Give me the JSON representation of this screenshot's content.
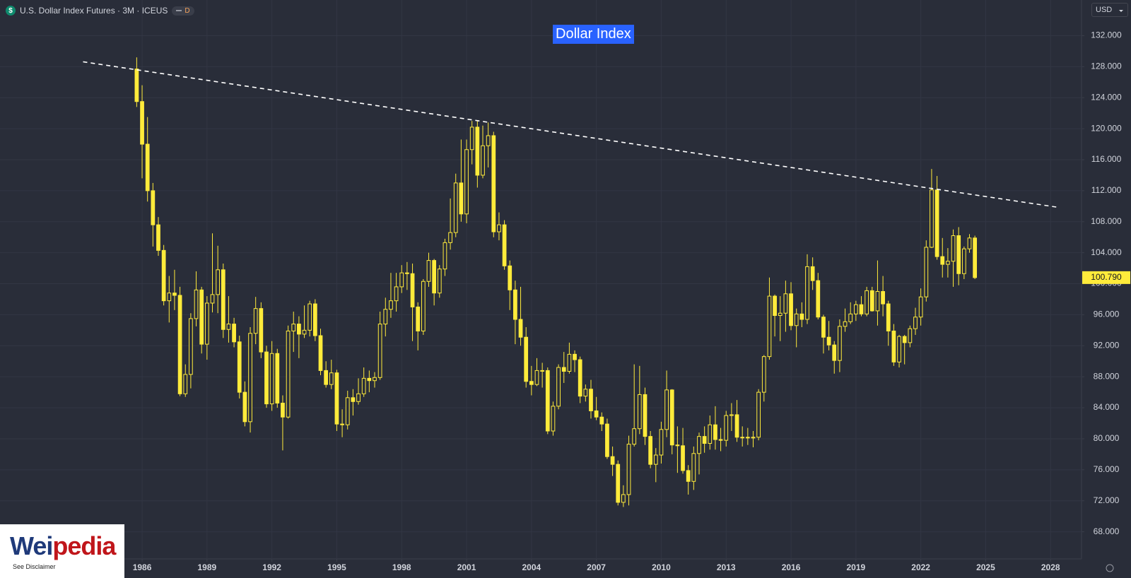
{
  "header": {
    "icon": "$",
    "symbol": "U.S. Dollar Index Futures · 3M · ICEUS",
    "badge": "D"
  },
  "currency": "USD",
  "logo": {
    "part_1": "Wei",
    "part_2": "pedia",
    "note": "See Disclaimer"
  },
  "chart_data": {
    "type": "candlestick",
    "annotation": "Dollar Index",
    "up_color": "#ffeb3b",
    "down_color": "#ffeb3b",
    "hollow_up": true,
    "grid": true,
    "xlim": [
      1979.43,
      2029.43
    ],
    "ylim": [
      64.5,
      136.6
    ],
    "xticks": [
      1986,
      1989,
      1992,
      1995,
      1998,
      2001,
      2004,
      2007,
      2010,
      2013,
      2016,
      2019,
      2022,
      2025,
      2028
    ],
    "yticks": [
      {
        "value": 68,
        "label": "68.000"
      },
      {
        "value": 72,
        "label": "72.000"
      },
      {
        "value": 76,
        "label": "76.000"
      },
      {
        "value": 80,
        "label": "80.000"
      },
      {
        "value": 84,
        "label": "84.000"
      },
      {
        "value": 88,
        "label": "88.000"
      },
      {
        "value": 92,
        "label": "92.000"
      },
      {
        "value": 96,
        "label": "96.000"
      },
      {
        "value": 100,
        "label": "100.000"
      },
      {
        "value": 104,
        "label": "104.000"
      },
      {
        "value": 108,
        "label": "108.000"
      },
      {
        "value": 112,
        "label": "112.000"
      },
      {
        "value": 116,
        "label": "116.000"
      },
      {
        "value": 120,
        "label": "120.000"
      },
      {
        "value": 124,
        "label": "124.000"
      },
      {
        "value": 128,
        "label": "128.000"
      },
      {
        "value": 132,
        "label": "132.000"
      }
    ],
    "last_price": {
      "value": 100.79,
      "label": "100.790"
    },
    "trendline": {
      "x": [
        1983.27,
        2028.36
      ],
      "y": [
        128.63,
        109.85
      ],
      "color": "#ffffff"
    },
    "x": [
      1985.75,
      1986,
      1986.25,
      1986.5,
      1986.75,
      1987,
      1987.25,
      1987.5,
      1987.75,
      1988,
      1988.25,
      1988.5,
      1988.75,
      1989,
      1989.25,
      1989.5,
      1989.75,
      1990,
      1990.25,
      1990.5,
      1990.75,
      1991,
      1991.25,
      1991.5,
      1991.75,
      1992,
      1992.25,
      1992.5,
      1992.75,
      1993,
      1993.25,
      1993.5,
      1993.75,
      1994,
      1994.25,
      1994.5,
      1994.75,
      1995,
      1995.25,
      1995.5,
      1995.75,
      1996,
      1996.25,
      1996.5,
      1996.75,
      1997,
      1997.25,
      1997.5,
      1997.75,
      1998,
      1998.25,
      1998.5,
      1998.75,
      1999,
      1999.25,
      1999.5,
      1999.75,
      2000,
      2000.25,
      2000.5,
      2000.75,
      2001,
      2001.25,
      2001.5,
      2001.75,
      2002,
      2002.25,
      2002.5,
      2002.75,
      2003,
      2003.25,
      2003.5,
      2003.75,
      2004,
      2004.25,
      2004.5,
      2004.75,
      2005,
      2005.25,
      2005.5,
      2005.75,
      2006,
      2006.25,
      2006.5,
      2006.75,
      2007,
      2007.25,
      2007.5,
      2007.75,
      2008,
      2008.25,
      2008.5,
      2008.75,
      2009,
      2009.25,
      2009.5,
      2009.75,
      2010,
      2010.25,
      2010.5,
      2010.75,
      2011,
      2011.25,
      2011.5,
      2011.75,
      2012,
      2012.25,
      2012.5,
      2012.75,
      2013,
      2013.25,
      2013.5,
      2013.75,
      2014,
      2014.25,
      2014.5,
      2014.75,
      2015,
      2015.25,
      2015.5,
      2015.75,
      2016,
      2016.25,
      2016.5,
      2016.75,
      2017,
      2017.25,
      2017.5,
      2017.75,
      2018,
      2018.25,
      2018.5,
      2018.75,
      2019,
      2019.25,
      2019.5,
      2019.75,
      2020,
      2020.25,
      2020.5,
      2020.75,
      2021,
      2021.25,
      2021.5,
      2021.75,
      2022,
      2022.25,
      2022.5,
      2022.75,
      2023,
      2023.25,
      2023.5,
      2023.75,
      2024,
      2024.25,
      2024.5
    ],
    "open": [
      127.7,
      123.5,
      118.0,
      112.0,
      107.6,
      104.3,
      97.8,
      98.8,
      98.5,
      85.8,
      88.3,
      95.5,
      99.2,
      92.2,
      97.5,
      98.6,
      101.8,
      94.1,
      94.8,
      92.5,
      86.0,
      82.2,
      93.6,
      96.8,
      91.2,
      84.5,
      91.0,
      84.6,
      82.8,
      93.9,
      94.8,
      93.5,
      94.0,
      97.4,
      93.3,
      88.8,
      87.0,
      88.5,
      81.9,
      81.8,
      85.3,
      84.8,
      85.8,
      87.8,
      87.5,
      87.9,
      94.8,
      96.7,
      97.8,
      99.6,
      101.4,
      101.3,
      97.0,
      93.9,
      100.3,
      103.0,
      98.8,
      101.9,
      105.3,
      106.6,
      113.0,
      109.0,
      117.3,
      120.2,
      114.0,
      117.8,
      119.1,
      106.7,
      107.6,
      102.3,
      99.2,
      95.4,
      93.1,
      87.4,
      87.0,
      88.8,
      88.8,
      81.0,
      84.2,
      89.2,
      88.7,
      90.9,
      90.2,
      85.5,
      86.4,
      83.6,
      82.8,
      81.9,
      77.7,
      76.7,
      71.8,
      72.8,
      79.3,
      81.3,
      85.7,
      80.3,
      76.7,
      77.9,
      81.2,
      86.3,
      79.2,
      79.1,
      75.9,
      74.5,
      78.1,
      80.3,
      79.4,
      81.8,
      79.9,
      79.8,
      83.0,
      83.1,
      80.2,
      80.2,
      80.1,
      80.2,
      86.0,
      90.6,
      98.4,
      95.9,
      96.2,
      98.7,
      94.6,
      96.1,
      95.4,
      102.2,
      100.4,
      95.7,
      93.1,
      92.1,
      90.1,
      94.5,
      95.1,
      96.1,
      97.3,
      96.1,
      99.1,
      96.5,
      99.0,
      97.4,
      93.9,
      89.9,
      93.2,
      92.4,
      94.2,
      95.7,
      98.3,
      104.7,
      112.1,
      103.5,
      102.5,
      102.9,
      106.2,
      101.3,
      104.5,
      105.9
    ],
    "high": [
      129.2,
      125.6,
      121.5,
      113.0,
      108.6,
      105.0,
      101.0,
      101.8,
      99.6,
      89.6,
      96.2,
      101.6,
      99.6,
      98.4,
      106.5,
      104.9,
      102.6,
      98.4,
      95.6,
      93.3,
      87.4,
      94.4,
      98.3,
      97.6,
      92.0,
      92.6,
      91.6,
      85.6,
      94.6,
      96.4,
      95.8,
      97.2,
      97.8,
      98.0,
      94.2,
      90.0,
      90.2,
      88.9,
      83.8,
      86.2,
      86.4,
      87.8,
      89.2,
      88.8,
      88.6,
      96.4,
      98.2,
      101.4,
      101.4,
      102.4,
      102.8,
      102.6,
      97.6,
      100.6,
      104.0,
      103.2,
      102.4,
      105.8,
      111.0,
      114.2,
      118.6,
      118.6,
      121.0,
      121.0,
      120.4,
      120.8,
      119.6,
      109.2,
      108.2,
      103.0,
      100.4,
      99.6,
      94.4,
      89.4,
      90.4,
      89.8,
      89.2,
      84.8,
      89.6,
      91.2,
      92.4,
      91.4,
      90.6,
      87.0,
      87.6,
      85.4,
      83.4,
      82.6,
      79.0,
      77.2,
      74.0,
      80.4,
      89.6,
      89.4,
      86.6,
      81.0,
      78.8,
      82.2,
      88.8,
      86.4,
      81.6,
      81.4,
      76.6,
      79.0,
      80.8,
      81.6,
      83.0,
      84.2,
      81.4,
      83.6,
      84.6,
      85.0,
      81.6,
      81.4,
      81.0,
      86.4,
      90.8,
      100.8,
      98.6,
      98.4,
      100.4,
      100.2,
      96.8,
      97.6,
      103.8,
      103.4,
      101.4,
      96.0,
      95.2,
      92.6,
      95.4,
      96.8,
      97.6,
      97.8,
      98.4,
      99.6,
      99.6,
      103.0,
      101.0,
      97.8,
      94.8,
      93.4,
      93.4,
      94.6,
      96.9,
      99.4,
      105.6,
      114.8,
      113.9,
      105.9,
      104.6,
      107.0,
      107.3,
      104.8,
      106.4,
      106.2
    ],
    "low": [
      122.8,
      113.6,
      110.6,
      104.8,
      103.6,
      97.2,
      95.0,
      96.6,
      85.5,
      85.4,
      86.5,
      94.5,
      91.0,
      90.2,
      96.3,
      96.2,
      93.0,
      92.4,
      91.8,
      85.2,
      81.6,
      80.8,
      92.2,
      90.4,
      84.0,
      83.6,
      84.0,
      78.5,
      82.6,
      91.2,
      90.4,
      93.0,
      93.2,
      92.6,
      88.2,
      86.6,
      86.4,
      81.0,
      80.2,
      81.2,
      83.0,
      84.4,
      85.4,
      86.0,
      86.6,
      87.6,
      93.2,
      95.6,
      96.4,
      98.8,
      99.2,
      92.6,
      91.4,
      93.4,
      99.6,
      97.2,
      98.2,
      101.0,
      104.4,
      106.0,
      108.0,
      107.8,
      115.4,
      112.4,
      113.6,
      115.0,
      106.0,
      105.6,
      101.8,
      96.6,
      92.2,
      92.0,
      86.6,
      85.6,
      86.8,
      86.6,
      80.6,
      80.4,
      83.8,
      87.2,
      88.4,
      88.6,
      84.6,
      84.8,
      82.6,
      82.4,
      81.0,
      77.4,
      75.2,
      71.4,
      71.2,
      71.4,
      79.0,
      80.6,
      79.2,
      76.2,
      74.4,
      76.8,
      80.2,
      78.0,
      75.6,
      75.5,
      72.8,
      73.4,
      75.4,
      78.2,
      78.6,
      78.6,
      78.4,
      79.0,
      81.0,
      79.6,
      79.0,
      79.2,
      78.9,
      79.8,
      84.8,
      90.2,
      93.2,
      92.6,
      93.8,
      94.0,
      91.8,
      94.4,
      94.8,
      99.2,
      95.4,
      91.0,
      91.4,
      88.4,
      88.6,
      93.8,
      94.8,
      95.2,
      95.8,
      95.8,
      96.4,
      94.6,
      95.8,
      92.0,
      89.4,
      89.2,
      89.6,
      91.8,
      93.4,
      94.6,
      97.7,
      104.6,
      103.1,
      100.8,
      100.8,
      99.6,
      99.8,
      100.6,
      104.0,
      100.6
    ],
    "close": [
      123.5,
      118.0,
      112.0,
      107.6,
      104.3,
      97.8,
      98.8,
      98.5,
      85.8,
      88.3,
      95.5,
      99.2,
      92.2,
      97.5,
      98.6,
      101.8,
      94.1,
      94.8,
      92.5,
      86.0,
      82.2,
      93.6,
      96.8,
      91.2,
      84.5,
      91.0,
      84.6,
      82.8,
      93.9,
      94.8,
      93.5,
      94.0,
      97.4,
      93.3,
      88.8,
      87.0,
      88.5,
      81.9,
      81.8,
      85.3,
      84.8,
      85.8,
      87.8,
      87.5,
      87.9,
      94.8,
      96.7,
      97.8,
      99.6,
      101.4,
      101.3,
      97.0,
      93.9,
      100.3,
      103.0,
      98.8,
      101.9,
      105.3,
      106.6,
      113.0,
      109.0,
      117.3,
      120.2,
      114.0,
      117.8,
      119.1,
      106.7,
      107.6,
      102.3,
      99.2,
      95.4,
      93.1,
      87.4,
      87.0,
      88.8,
      88.8,
      81.0,
      84.2,
      89.2,
      88.7,
      90.9,
      90.2,
      85.5,
      86.4,
      83.6,
      82.8,
      81.9,
      77.7,
      76.7,
      71.8,
      72.8,
      79.3,
      81.3,
      85.7,
      80.3,
      76.7,
      77.9,
      81.2,
      86.3,
      79.2,
      79.1,
      75.9,
      74.5,
      78.1,
      80.3,
      79.4,
      81.8,
      79.9,
      79.8,
      83.0,
      83.1,
      80.2,
      80.2,
      80.1,
      80.2,
      86.0,
      90.6,
      98.4,
      95.9,
      96.2,
      98.7,
      94.6,
      96.1,
      95.4,
      102.2,
      100.4,
      95.7,
      93.1,
      92.1,
      90.1,
      94.5,
      95.1,
      96.1,
      97.3,
      96.1,
      99.1,
      96.5,
      99.0,
      97.4,
      93.9,
      89.9,
      93.2,
      92.4,
      94.2,
      95.7,
      98.3,
      104.7,
      112.1,
      103.5,
      102.5,
      102.9,
      106.2,
      101.3,
      104.5,
      105.9,
      100.79
    ]
  }
}
